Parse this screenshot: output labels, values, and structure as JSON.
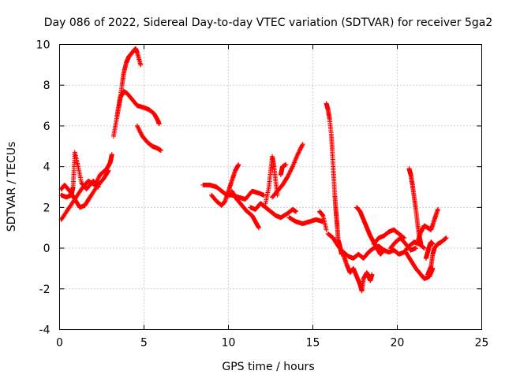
{
  "chart_data": {
    "type": "scatter",
    "title": "Day 086 of 2022, Sidereal Day-to-day VTEC variation (SDTVAR) for receiver 5ga2",
    "xlabel": "GPS time / hours",
    "ylabel": "SDTVAR / TECUs",
    "xlim": [
      0,
      25
    ],
    "ylim": [
      -4,
      10
    ],
    "xticks": [
      0,
      5,
      10,
      15,
      20,
      25
    ],
    "yticks": [
      -4,
      -2,
      0,
      2,
      4,
      6,
      8,
      10
    ],
    "grid": true,
    "marker": "+",
    "color": "#ff0000",
    "series": [
      {
        "name": "SDTVAR",
        "segments": [
          [
            [
              0.1,
              1.4
            ],
            [
              0.5,
              1.9
            ],
            [
              0.9,
              2.4
            ],
            [
              1.3,
              2.9
            ],
            [
              1.7,
              3.3
            ],
            [
              2.1,
              3.1
            ],
            [
              2.4,
              3.6
            ],
            [
              2.8,
              3.9
            ],
            [
              3.0,
              4.2
            ],
            [
              3.1,
              4.6
            ]
          ],
          [
            [
              0.1,
              2.9
            ],
            [
              0.3,
              3.1
            ],
            [
              0.6,
              2.8
            ],
            [
              0.9,
              2.4
            ],
            [
              1.2,
              2.0
            ],
            [
              1.5,
              2.1
            ],
            [
              1.8,
              2.5
            ],
            [
              2.2,
              3.0
            ],
            [
              2.6,
              3.4
            ],
            [
              2.9,
              3.8
            ]
          ],
          [
            [
              0.1,
              2.6
            ],
            [
              0.4,
              2.5
            ],
            [
              0.7,
              2.6
            ],
            [
              0.8,
              3.0
            ],
            [
              0.85,
              3.8
            ],
            [
              0.9,
              4.7
            ],
            [
              1.1,
              4.0
            ],
            [
              1.3,
              3.2
            ],
            [
              1.6,
              2.9
            ],
            [
              2.0,
              3.3
            ],
            [
              2.3,
              3.0
            ]
          ],
          [
            [
              3.2,
              5.5
            ],
            [
              3.35,
              6.2
            ],
            [
              3.5,
              6.9
            ],
            [
              3.6,
              7.4
            ],
            [
              3.8,
              7.7
            ],
            [
              4.0,
              7.6
            ],
            [
              4.3,
              7.3
            ],
            [
              4.6,
              7.0
            ],
            [
              5.0,
              6.9
            ],
            [
              5.3,
              6.8
            ],
            [
              5.6,
              6.6
            ],
            [
              5.8,
              6.3
            ],
            [
              5.9,
              6.1
            ]
          ],
          [
            [
              3.4,
              6.5
            ],
            [
              3.55,
              7.2
            ],
            [
              3.7,
              8.0
            ],
            [
              3.8,
              8.6
            ],
            [
              3.95,
              9.1
            ],
            [
              4.1,
              9.4
            ],
            [
              4.3,
              9.6
            ],
            [
              4.5,
              9.8
            ],
            [
              4.6,
              9.6
            ],
            [
              4.8,
              9.0
            ]
          ],
          [
            [
              4.6,
              6.0
            ],
            [
              4.9,
              5.5
            ],
            [
              5.2,
              5.2
            ],
            [
              5.5,
              5.0
            ],
            [
              5.8,
              4.9
            ],
            [
              6.0,
              4.8
            ]
          ],
          [
            [
              8.5,
              3.1
            ],
            [
              8.9,
              3.1
            ],
            [
              9.3,
              3.0
            ],
            [
              9.6,
              2.8
            ],
            [
              9.9,
              2.6
            ],
            [
              10.2,
              2.6
            ],
            [
              10.6,
              2.5
            ],
            [
              11.0,
              2.4
            ],
            [
              11.4,
              2.8
            ],
            [
              11.8,
              2.7
            ],
            [
              12.1,
              2.6
            ]
          ],
          [
            [
              9.0,
              2.6
            ],
            [
              9.3,
              2.3
            ],
            [
              9.6,
              2.1
            ],
            [
              9.8,
              2.3
            ],
            [
              10.0,
              2.8
            ],
            [
              10.2,
              3.3
            ],
            [
              10.4,
              3.8
            ],
            [
              10.6,
              4.1
            ]
          ],
          [
            [
              10.2,
              2.8
            ],
            [
              10.5,
              2.4
            ],
            [
              10.8,
              2.1
            ],
            [
              11.1,
              1.8
            ],
            [
              11.4,
              1.6
            ],
            [
              11.6,
              1.3
            ],
            [
              11.8,
              1.0
            ]
          ],
          [
            [
              11.3,
              2.0
            ],
            [
              11.6,
              1.9
            ],
            [
              11.9,
              2.2
            ],
            [
              12.2,
              2.0
            ],
            [
              12.5,
              1.8
            ],
            [
              12.8,
              1.6
            ],
            [
              13.1,
              1.5
            ],
            [
              13.5,
              1.7
            ],
            [
              13.8,
              1.9
            ],
            [
              14.0,
              1.8
            ]
          ],
          [
            [
              12.2,
              2.2
            ],
            [
              12.4,
              3.0
            ],
            [
              12.5,
              3.8
            ],
            [
              12.6,
              4.5
            ],
            [
              12.7,
              4.0
            ],
            [
              12.8,
              3.3
            ],
            [
              12.9,
              2.6
            ]
          ],
          [
            [
              12.6,
              2.5
            ],
            [
              12.9,
              2.8
            ],
            [
              13.2,
              3.1
            ],
            [
              13.5,
              3.5
            ],
            [
              13.8,
              4.0
            ],
            [
              14.1,
              4.6
            ],
            [
              14.4,
              5.1
            ]
          ],
          [
            [
              13.1,
              3.6
            ],
            [
              13.2,
              4.0
            ],
            [
              13.4,
              4.1
            ]
          ],
          [
            [
              13.6,
              1.5
            ],
            [
              14.0,
              1.3
            ],
            [
              14.4,
              1.2
            ],
            [
              14.8,
              1.3
            ],
            [
              15.2,
              1.4
            ],
            [
              15.6,
              1.3
            ]
          ],
          [
            [
              15.4,
              1.8
            ],
            [
              15.6,
              1.6
            ],
            [
              15.8,
              0.9
            ]
          ],
          [
            [
              15.8,
              7.1
            ],
            [
              15.9,
              6.8
            ],
            [
              16.0,
              6.3
            ],
            [
              16.1,
              5.5
            ],
            [
              16.15,
              4.8
            ],
            [
              16.2,
              4.0
            ],
            [
              16.25,
              3.3
            ],
            [
              16.3,
              2.6
            ],
            [
              16.35,
              2.0
            ],
            [
              16.4,
              1.5
            ],
            [
              16.45,
              1.0
            ],
            [
              16.5,
              0.4
            ],
            [
              16.6,
              0.1
            ],
            [
              16.7,
              -0.3
            ]
          ],
          [
            [
              15.9,
              0.7
            ],
            [
              16.2,
              0.5
            ],
            [
              16.5,
              0.1
            ],
            [
              16.8,
              -0.2
            ],
            [
              17.1,
              -0.4
            ],
            [
              17.4,
              -0.5
            ],
            [
              17.7,
              -0.3
            ],
            [
              18.0,
              -0.5
            ],
            [
              18.3,
              -0.2
            ],
            [
              18.6,
              0.0
            ],
            [
              18.9,
              0.1
            ],
            [
              19.2,
              -0.1
            ],
            [
              19.5,
              -0.2
            ],
            [
              19.8,
              -0.1
            ],
            [
              20.1,
              -0.3
            ],
            [
              20.4,
              -0.2
            ],
            [
              20.7,
              0.1
            ],
            [
              21.0,
              0.3
            ],
            [
              21.3,
              0.2
            ],
            [
              21.6,
              0.0
            ]
          ],
          [
            [
              16.8,
              -0.3
            ],
            [
              17.0,
              -0.8
            ],
            [
              17.2,
              -1.2
            ],
            [
              17.4,
              -1.0
            ],
            [
              17.6,
              -1.4
            ],
            [
              17.8,
              -1.8
            ],
            [
              17.9,
              -2.1
            ],
            [
              18.0,
              -1.5
            ],
            [
              18.2,
              -1.2
            ],
            [
              18.4,
              -1.6
            ],
            [
              18.5,
              -1.3
            ]
          ],
          [
            [
              17.6,
              2.0
            ],
            [
              17.8,
              1.8
            ],
            [
              18.0,
              1.4
            ],
            [
              18.2,
              1.0
            ],
            [
              18.4,
              0.6
            ],
            [
              18.6,
              0.3
            ],
            [
              18.8,
              0.0
            ],
            [
              19.0,
              -0.3
            ],
            [
              19.2,
              -0.1
            ]
          ],
          [
            [
              18.6,
              0.2
            ],
            [
              18.9,
              0.5
            ],
            [
              19.2,
              0.6
            ],
            [
              19.5,
              0.8
            ],
            [
              19.8,
              0.9
            ],
            [
              20.1,
              0.7
            ],
            [
              20.4,
              0.5
            ]
          ],
          [
            [
              19.6,
              0.0
            ],
            [
              19.9,
              0.3
            ],
            [
              20.2,
              0.5
            ],
            [
              20.5,
              0.2
            ],
            [
              20.8,
              -0.1
            ],
            [
              21.1,
              0.0
            ]
          ],
          [
            [
              20.7,
              3.9
            ],
            [
              20.8,
              3.6
            ],
            [
              20.9,
              3.1
            ],
            [
              21.0,
              2.5
            ],
            [
              21.1,
              1.9
            ],
            [
              21.2,
              1.2
            ],
            [
              21.3,
              0.6
            ],
            [
              21.4,
              0.2
            ]
          ],
          [
            [
              20.5,
              -0.2
            ],
            [
              20.8,
              -0.6
            ],
            [
              21.1,
              -1.0
            ],
            [
              21.4,
              -1.3
            ],
            [
              21.6,
              -1.5
            ],
            [
              21.9,
              -1.4
            ],
            [
              22.1,
              -1.0
            ]
          ],
          [
            [
              21.2,
              0.3
            ],
            [
              21.4,
              0.8
            ],
            [
              21.6,
              1.1
            ],
            [
              21.8,
              1.0
            ],
            [
              22.0,
              0.9
            ],
            [
              22.2,
              1.4
            ],
            [
              22.4,
              1.9
            ]
          ],
          [
            [
              21.8,
              -1.3
            ],
            [
              22.0,
              -0.9
            ],
            [
              22.1,
              -0.3
            ],
            [
              22.2,
              0.0
            ],
            [
              22.4,
              0.2
            ],
            [
              22.6,
              0.3
            ],
            [
              22.9,
              0.5
            ]
          ],
          [
            [
              21.7,
              -0.5
            ],
            [
              21.8,
              -0.2
            ],
            [
              21.9,
              0.1
            ],
            [
              22.0,
              0.3
            ],
            [
              22.1,
              0.2
            ]
          ]
        ]
      }
    ]
  }
}
